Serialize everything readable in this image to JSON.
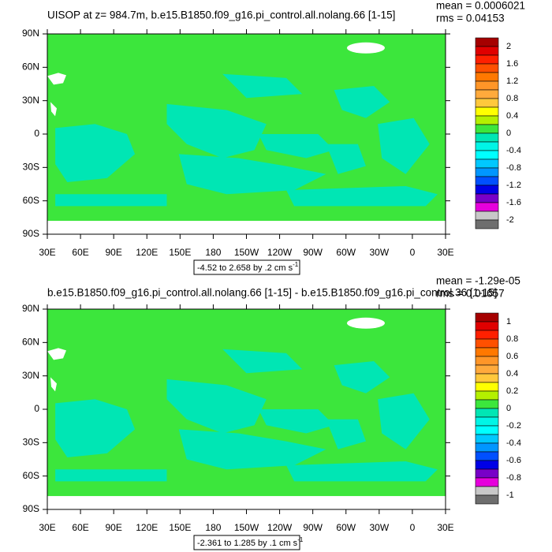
{
  "chart_data": [
    {
      "type": "map",
      "title": "UISOP at z= 984.7m, b.e15.B1850.f09_g16.pi_control.all.nolang.66 [1-15]",
      "mean_label": "mean = 0.0006021",
      "rms_label": "rms = 0.04153",
      "info": "-4.52 to 2.658 by .2 cm s",
      "info_sup": "-1",
      "xlim": [
        30,
        390
      ],
      "ylim": [
        -90,
        90
      ],
      "xticks": [
        {
          "value": 30,
          "label": "30E"
        },
        {
          "value": 60,
          "label": "60E"
        },
        {
          "value": 90,
          "label": "90E"
        },
        {
          "value": 120,
          "label": "120E"
        },
        {
          "value": 150,
          "label": "150E"
        },
        180,
        {
          "value": 210,
          "label": "150W"
        },
        {
          "value": 240,
          "label": "120W"
        },
        {
          "value": 270,
          "label": "90W"
        },
        {
          "value": 300,
          "label": "60W"
        },
        {
          "value": 330,
          "label": "30W"
        },
        {
          "value": 360,
          "label": "0"
        },
        {
          "value": 390,
          "label": "30E"
        }
      ],
      "yticks": [
        {
          "value": 90,
          "label": "90N"
        },
        {
          "value": 60,
          "label": "60N"
        },
        {
          "value": 30,
          "label": "30N"
        },
        0,
        {
          "value": -30,
          "label": "30S"
        },
        {
          "value": -60,
          "label": "60S"
        },
        {
          "value": -90,
          "label": "90S"
        }
      ],
      "colorbar_labels": [
        2,
        1.6,
        1.2,
        0.8,
        0.4,
        0,
        -0.4,
        -0.8,
        -1.2,
        -1.6,
        -2
      ],
      "colors": [
        "#a50000",
        "#e00000",
        "#ff2000",
        "#ff5000",
        "#ff7800",
        "#ff9628",
        "#ffaa3c",
        "#ffc83c",
        "#ffff00",
        "#b4f000",
        "#3ce63c",
        "#00e6b4",
        "#00f5e6",
        "#00ffff",
        "#00c8ff",
        "#0096ff",
        "#0050ff",
        "#0000e6",
        "#7800c8",
        "#e600dc",
        "#c8c8c8",
        "#6e6e6e"
      ]
    },
    {
      "type": "map",
      "title": "b.e15.B1850.f09_g16.pi_control.all.nolang.66 [1-15] - b.e15.B1850.f09_g16.pi_control.36 [1-15]",
      "mean_label": "mean = -1.29e-05",
      "rms_label": "rms = 0.01657",
      "info": "-2.361 to 1.285 by .1 cm s",
      "info_sup": "-1",
      "xlim": [
        30,
        390
      ],
      "ylim": [
        -90,
        90
      ],
      "xticks": [
        {
          "value": 30,
          "label": "30E"
        },
        {
          "value": 60,
          "label": "60E"
        },
        {
          "value": 90,
          "label": "90E"
        },
        {
          "value": 120,
          "label": "120E"
        },
        {
          "value": 150,
          "label": "150E"
        },
        180,
        {
          "value": 210,
          "label": "150W"
        },
        {
          "value": 240,
          "label": "120W"
        },
        {
          "value": 270,
          "label": "90W"
        },
        {
          "value": 300,
          "label": "60W"
        },
        {
          "value": 330,
          "label": "30W"
        },
        {
          "value": 360,
          "label": "0"
        },
        {
          "value": 390,
          "label": "30E"
        }
      ],
      "yticks": [
        {
          "value": 90,
          "label": "90N"
        },
        {
          "value": 60,
          "label": "60N"
        },
        {
          "value": 30,
          "label": "30N"
        },
        0,
        {
          "value": -30,
          "label": "30S"
        },
        {
          "value": -60,
          "label": "60S"
        },
        {
          "value": -90,
          "label": "90S"
        }
      ],
      "colorbar_labels": [
        1,
        0.8,
        0.6,
        0.4,
        0.2,
        0,
        -0.2,
        -0.4,
        -0.6,
        -0.8,
        -1
      ],
      "colors": [
        "#a50000",
        "#e00000",
        "#ff2000",
        "#ff5000",
        "#ff7800",
        "#ff9628",
        "#ffaa3c",
        "#ffc83c",
        "#ffff00",
        "#b4f000",
        "#3ce63c",
        "#00e6b4",
        "#00f5e6",
        "#00ffff",
        "#00c8ff",
        "#0096ff",
        "#0050ff",
        "#0000e6",
        "#7800c8",
        "#e600dc",
        "#c8c8c8",
        "#6e6e6e"
      ]
    }
  ]
}
